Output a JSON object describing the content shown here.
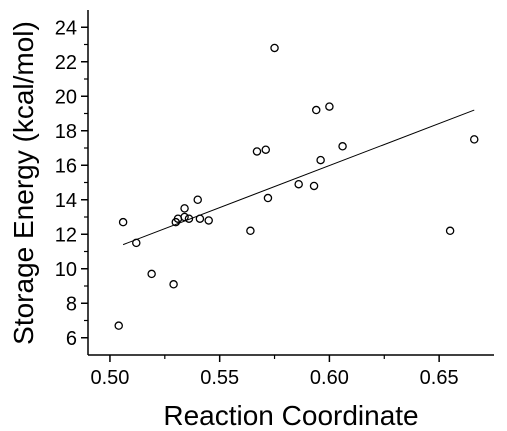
{
  "chart_data": {
    "type": "scatter",
    "title": "",
    "xlabel": "Reaction Coordinate",
    "ylabel": "Storage Energy (kcal/mol)",
    "xlim": [
      0.49,
      0.675
    ],
    "ylim": [
      5,
      25
    ],
    "xticks": [
      0.5,
      0.55,
      0.6,
      0.65
    ],
    "xtick_labels": [
      "0.50",
      "0.55",
      "0.60",
      "0.65"
    ],
    "yticks": [
      6,
      8,
      10,
      12,
      14,
      16,
      18,
      20,
      22,
      24
    ],
    "ytick_labels": [
      "6",
      "8",
      "10",
      "12",
      "14",
      "16",
      "18",
      "20",
      "22",
      "24"
    ],
    "grid": false,
    "legend": "none",
    "marker": "open-circle",
    "series": [
      {
        "points": [
          {
            "x": 0.504,
            "y": 6.7
          },
          {
            "x": 0.506,
            "y": 12.7
          },
          {
            "x": 0.512,
            "y": 11.5
          },
          {
            "x": 0.519,
            "y": 9.7
          },
          {
            "x": 0.529,
            "y": 9.1
          },
          {
            "x": 0.53,
            "y": 12.7
          },
          {
            "x": 0.531,
            "y": 12.9
          },
          {
            "x": 0.534,
            "y": 13.0
          },
          {
            "x": 0.534,
            "y": 13.5
          },
          {
            "x": 0.536,
            "y": 12.9
          },
          {
            "x": 0.54,
            "y": 14.0
          },
          {
            "x": 0.541,
            "y": 12.9
          },
          {
            "x": 0.545,
            "y": 12.8
          },
          {
            "x": 0.564,
            "y": 12.2
          },
          {
            "x": 0.567,
            "y": 16.8
          },
          {
            "x": 0.571,
            "y": 16.9
          },
          {
            "x": 0.572,
            "y": 14.1
          },
          {
            "x": 0.575,
            "y": 22.8
          },
          {
            "x": 0.586,
            "y": 14.9
          },
          {
            "x": 0.593,
            "y": 14.8
          },
          {
            "x": 0.594,
            "y": 19.2
          },
          {
            "x": 0.596,
            "y": 16.3
          },
          {
            "x": 0.6,
            "y": 19.4
          },
          {
            "x": 0.606,
            "y": 17.1
          },
          {
            "x": 0.655,
            "y": 12.2
          },
          {
            "x": 0.666,
            "y": 17.5
          }
        ]
      }
    ],
    "fit_line": {
      "x": [
        0.506,
        0.666
      ],
      "y": [
        11.4,
        19.2
      ]
    },
    "colors": {
      "marker": "#000000",
      "line": "#000000",
      "axis": "#000000"
    }
  }
}
